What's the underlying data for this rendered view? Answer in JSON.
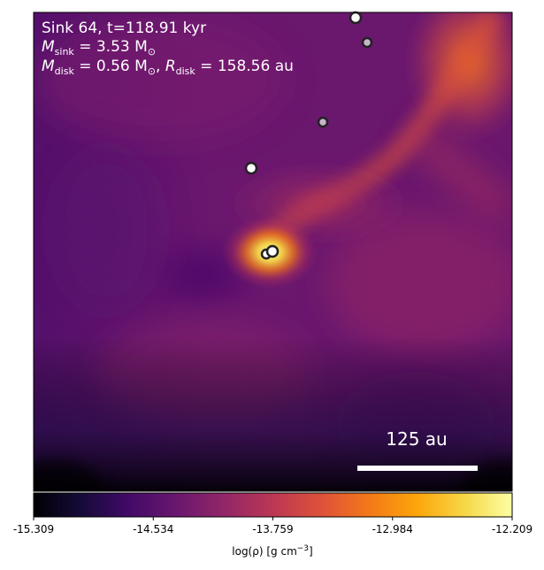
{
  "annotation": {
    "line1": "Sink 64, t=118.91 kyr",
    "line2_prefix": "M",
    "line2_sub": "sink",
    "line2_value": " = 3.53 M",
    "line2_sun": "⊙",
    "line3_prefix": "M",
    "line3_sub": "disk",
    "line3_value": " = 0.56 M",
    "line3_sun": "⊙",
    "line3_sep": ", ",
    "line3_r_prefix": "R",
    "line3_r_sub": "disk",
    "line3_r_value": " = 158.56 au"
  },
  "scale_bar": {
    "label": "125 au"
  },
  "colorbar": {
    "min": -15.309,
    "max": -12.209,
    "colormap": "inferno",
    "tick_labels": [
      "-15.309",
      "-14.534",
      "-13.759",
      "-12.984",
      "-12.209"
    ],
    "label_prefix": "log(ρ) [g cm",
    "label_sup": "−3",
    "label_suffix": "]"
  },
  "colors": {
    "background": "#ffffff",
    "annotation_text": "#ffffff",
    "sink_fill_bright": "#ffffff",
    "sink_fill_dim": "#c8b4c8",
    "sink_stroke": "#222222"
  },
  "sinks": [
    {
      "shade": "bright"
    },
    {
      "shade": "dim"
    },
    {
      "shade": "dim"
    },
    {
      "shade": "bright"
    },
    {
      "shade": "bright"
    },
    {
      "shade": "bright"
    }
  ]
}
